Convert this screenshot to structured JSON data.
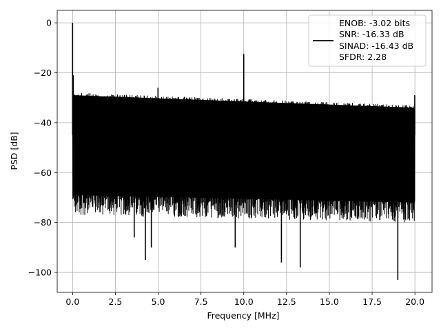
{
  "chart_data": {
    "type": "line",
    "xlabel": "Frequency [MHz]",
    "ylabel": "PSD [dB]",
    "xlim": [
      -0.9,
      21.0
    ],
    "ylim": [
      -108,
      5
    ],
    "xticks": [
      0.0,
      2.5,
      5.0,
      7.5,
      10.0,
      12.5,
      15.0,
      17.5,
      20.0
    ],
    "xtick_labels": [
      "0.0",
      "2.5",
      "5.0",
      "7.5",
      "10.0",
      "12.5",
      "15.0",
      "17.5",
      "20.0"
    ],
    "yticks": [
      0,
      -20,
      -40,
      -60,
      -80,
      -100
    ],
    "ytick_labels": [
      "0",
      "−20",
      "−40",
      "−60",
      "−80",
      "−100"
    ],
    "grid": true,
    "legend_position": "top-right",
    "series": [
      {
        "line_color": "#000000",
        "x_range": [
          0.0,
          20.0
        ],
        "noise_floor_band_top": [
          -28,
          -33
        ],
        "noise_floor_band_bottom": [
          -72,
          -75
        ],
        "spikes": [
          {
            "x": 0.0,
            "y": 0
          },
          {
            "x": 0.04,
            "y": -21
          },
          {
            "x": 4.99,
            "y": -26
          },
          {
            "x": 10.0,
            "y": -12.5
          },
          {
            "x": 19.99,
            "y": -29
          }
        ],
        "dips": [
          {
            "x": 3.6,
            "y": -86
          },
          {
            "x": 4.25,
            "y": -95
          },
          {
            "x": 4.6,
            "y": -90
          },
          {
            "x": 9.5,
            "y": -90
          },
          {
            "x": 12.2,
            "y": -96
          },
          {
            "x": 13.3,
            "y": -98
          },
          {
            "x": 19.0,
            "y": -103
          }
        ]
      }
    ],
    "legend": {
      "entries": [
        "ENOB: -3.02 bits",
        "SNR: -16.33 dB",
        "SINAD: -16.43 dB",
        "SFDR: 2.28"
      ]
    }
  }
}
